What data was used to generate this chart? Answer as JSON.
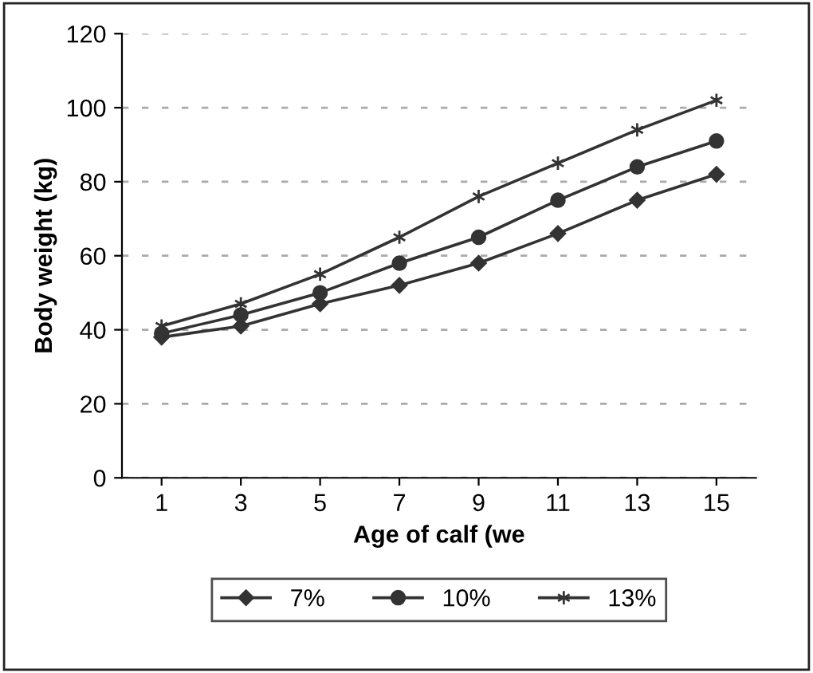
{
  "chart_data": {
    "type": "line",
    "xlabel": "Age of calf (we",
    "ylabel": "Body weight (kg)",
    "categories": [
      "1",
      "3",
      "5",
      "7",
      "9",
      "11",
      "13",
      "15"
    ],
    "series": [
      {
        "name": "7%",
        "color": "#333333",
        "marker": "diamond",
        "values": [
          38,
          41,
          47,
          52,
          58,
          66,
          75,
          82
        ]
      },
      {
        "name": "10%",
        "color": "#333333",
        "marker": "circle",
        "values": [
          39,
          44,
          50,
          58,
          65,
          75,
          84,
          91
        ]
      },
      {
        "name": "13%",
        "color": "#333333",
        "marker": "cross",
        "values": [
          41,
          47,
          55,
          65,
          76,
          85,
          94,
          102
        ]
      }
    ],
    "ylim": [
      0,
      120
    ],
    "yticks": [
      0,
      20,
      40,
      60,
      80,
      100,
      120
    ],
    "grid": "y",
    "legend": "bottom",
    "line_style": "solid"
  }
}
